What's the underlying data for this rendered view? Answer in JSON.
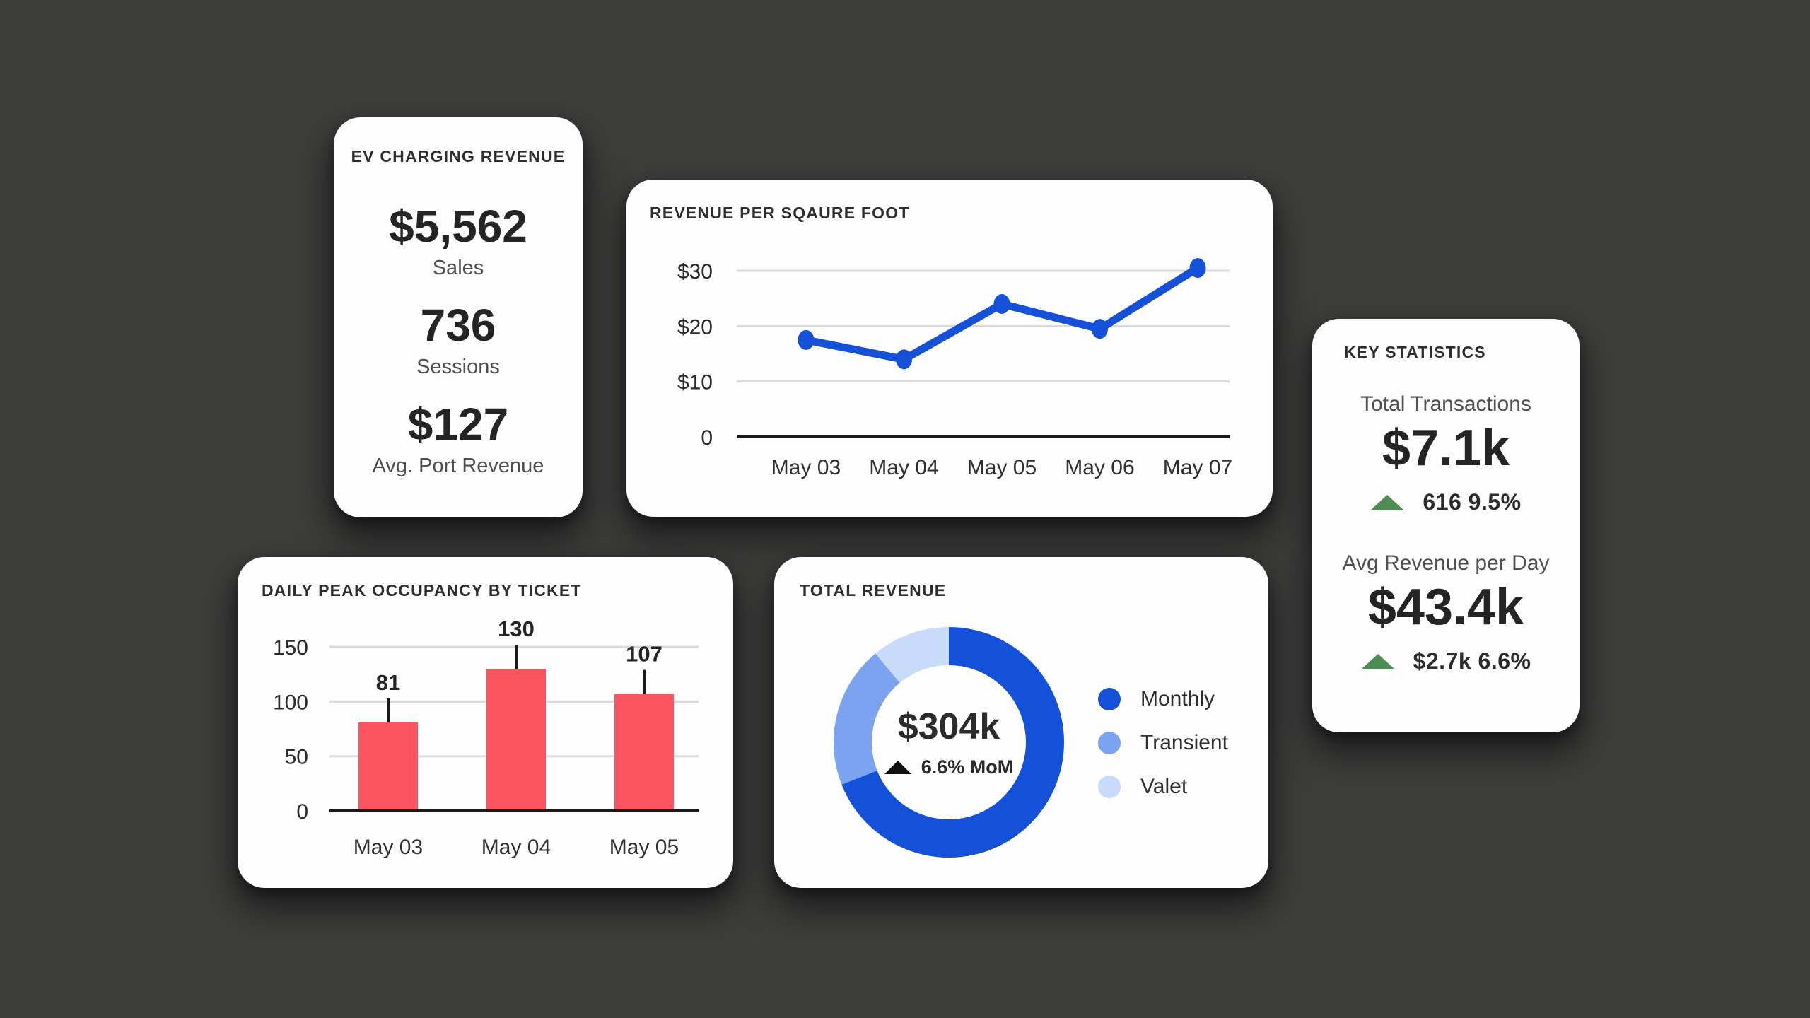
{
  "page": {
    "background": "#3d3d3c",
    "card_background": "#fefefe"
  },
  "colors": {
    "accent_blue": "#1450d8",
    "transient_blue": "#7ba3f0",
    "valet_blue": "#c9dbfb",
    "bar_red": "#fc5460",
    "up_green": "#4e8b55",
    "grid_gray": "#d9d9d9",
    "axis_black": "#1a1a1a"
  },
  "cards": {
    "ev_charging": {
      "title": "EV CHARGING REVENUE",
      "metrics": [
        {
          "value": "$5,562",
          "label": "Sales"
        },
        {
          "value": "736",
          "label": "Sessions"
        },
        {
          "value": "$127",
          "label": "Avg. Port Revenue"
        }
      ]
    },
    "key_statistics": {
      "title": "KEY STATISTICS",
      "stats": [
        {
          "label": "Total Transactions",
          "value": "$7.1k",
          "delta": "616 9.5%",
          "direction": "up"
        },
        {
          "label": "Avg Revenue per Day",
          "value": "$43.4k",
          "delta": "$2.7k 6.6%",
          "direction": "up"
        }
      ]
    }
  },
  "chart_data": [
    {
      "type": "line",
      "title": "REVENUE PER SQAURE FOOT",
      "x": [
        "May 03",
        "May 04",
        "May 05",
        "May 06",
        "May 07"
      ],
      "values": [
        17.5,
        14,
        24,
        19.5,
        30.5
      ],
      "yticks": [
        {
          "v": 30,
          "label": "$30"
        },
        {
          "v": 20,
          "label": "$20"
        },
        {
          "v": 10,
          "label": "$10"
        },
        {
          "v": 0,
          "label": "0"
        }
      ],
      "ylim": [
        0,
        33
      ],
      "line_color": "#1450d8",
      "grid": true,
      "legend_position": "none"
    },
    {
      "type": "bar",
      "title": "DAILY PEAK OCCUPANCY BY TICKET",
      "categories": [
        "May 03",
        "May 04",
        "May 05"
      ],
      "values": [
        81,
        130,
        107
      ],
      "yticks": [
        {
          "v": 150,
          "label": "150"
        },
        {
          "v": 100,
          "label": "100"
        },
        {
          "v": 50,
          "label": "50"
        },
        {
          "v": 0,
          "label": "0"
        }
      ],
      "ylim": [
        0,
        160
      ],
      "bar_color": "#fc5460",
      "grid": true,
      "legend_position": "none"
    },
    {
      "type": "donut",
      "title": "TOTAL REVENUE",
      "center_value": "$304k",
      "center_delta": "6.6% MoM",
      "slices": [
        {
          "name": "Monthly",
          "pct": 69,
          "color": "#1450d8"
        },
        {
          "name": "Transient",
          "pct": 20,
          "color": "#7ba3f0"
        },
        {
          "name": "Valet",
          "pct": 11,
          "color": "#c9dbfb"
        }
      ],
      "legend_position": "right"
    }
  ]
}
